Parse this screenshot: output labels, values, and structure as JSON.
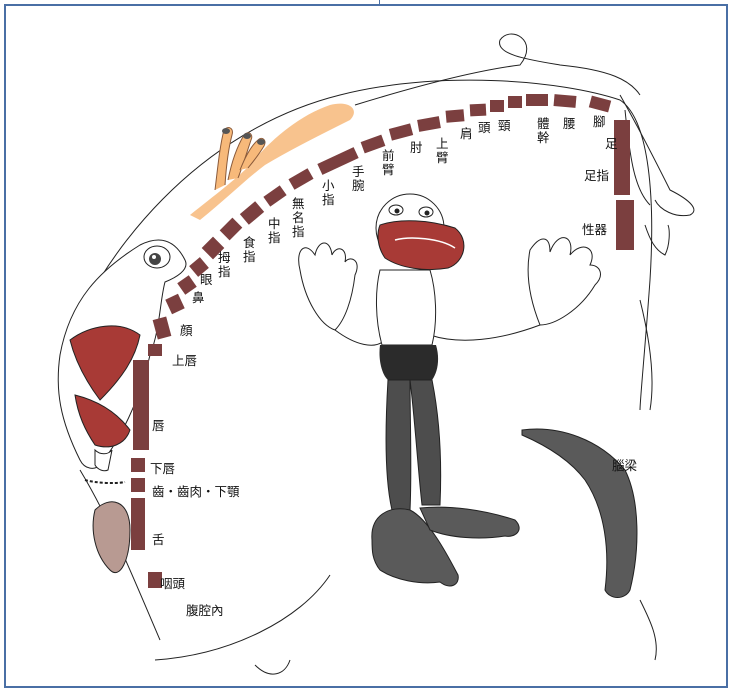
{
  "colors": {
    "strip": "#7b3f3f",
    "lip": "#a83a36",
    "hand_orange": "#f7b97a",
    "legs": "#4d4d4d",
    "shorts": "#2b2b2b",
    "tongue": "#b89a92",
    "frame": "#4a6fa5"
  },
  "labels": {
    "toes": "足指",
    "foot": "足",
    "leg": "腳",
    "waist": "腰",
    "trunk": "體幹",
    "neck": "頸",
    "head": "頭",
    "shoulder": "肩",
    "upper_arm": "上臂",
    "elbow": "肘",
    "forearm": "前臂",
    "wrist": "手腕",
    "little_finger": "小指",
    "ring_finger": "無名指",
    "middle_finger": "中指",
    "index_finger": "食指",
    "thumb": "拇指",
    "eye": "眼",
    "nose": "鼻",
    "face": "顔",
    "upper_lip": "上唇",
    "lips": "唇",
    "lower_lip": "下唇",
    "teeth_gums_jaw": "齒・齒肉・下顎",
    "tongue": "舌",
    "pharynx": "咽頭",
    "abdominal": "腹腔內",
    "genitals": "性器",
    "corpus_callosum": "腦梁"
  }
}
